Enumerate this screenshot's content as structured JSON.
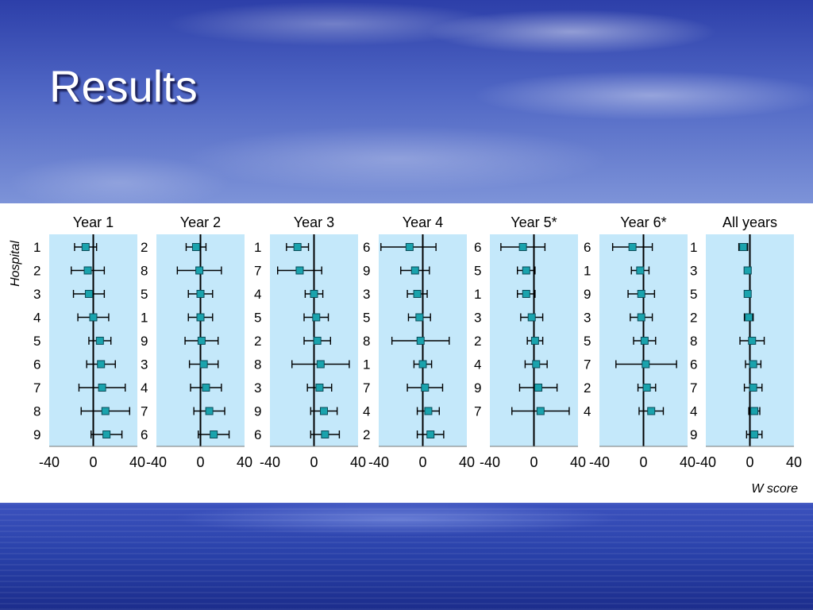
{
  "slide_title": "Results",
  "colors": {
    "panel_bg": "#c4e8fa",
    "marker": "#1aa3ad",
    "line": "#000000"
  },
  "chart_data": {
    "type": "scatter",
    "description_kind": "forest plot panels with error bars",
    "x_axis_label": "W score",
    "y_axis_label": "Hospital",
    "xlim": [
      -40,
      40
    ],
    "x_ticks": [
      "-40",
      "0",
      "40"
    ],
    "panels": [
      {
        "title": "Year 1",
        "hospitals": [
          "1",
          "2",
          "3",
          "4",
          "5",
          "6",
          "7",
          "8",
          "9"
        ],
        "points": [
          {
            "est": -7,
            "lo": -17,
            "hi": 3
          },
          {
            "est": -5,
            "lo": -20,
            "hi": 10
          },
          {
            "est": -4,
            "lo": -18,
            "hi": 10
          },
          {
            "est": 0,
            "lo": -14,
            "hi": 14
          },
          {
            "est": 6,
            "lo": -4,
            "hi": 16
          },
          {
            "est": 7,
            "lo": -6,
            "hi": 20
          },
          {
            "est": 8,
            "lo": -13,
            "hi": 29
          },
          {
            "est": 11,
            "lo": -11,
            "hi": 33
          },
          {
            "est": 12,
            "lo": -2,
            "hi": 26
          }
        ]
      },
      {
        "title": "Year 2",
        "hospitals": [
          "2",
          "8",
          "5",
          "1",
          "9",
          "3",
          "4",
          "7",
          "6"
        ],
        "points": [
          {
            "est": -4,
            "lo": -13,
            "hi": 5
          },
          {
            "est": -1,
            "lo": -21,
            "hi": 19
          },
          {
            "est": 0,
            "lo": -11,
            "hi": 11
          },
          {
            "est": 0,
            "lo": -11,
            "hi": 11
          },
          {
            "est": 1,
            "lo": -14,
            "hi": 16
          },
          {
            "est": 3,
            "lo": -10,
            "hi": 16
          },
          {
            "est": 5,
            "lo": -9,
            "hi": 19
          },
          {
            "est": 8,
            "lo": -6,
            "hi": 22
          },
          {
            "est": 12,
            "lo": -2,
            "hi": 26
          }
        ]
      },
      {
        "title": "Year 3",
        "hospitals": [
          "1",
          "7",
          "4",
          "5",
          "2",
          "8",
          "3",
          "9",
          "6"
        ],
        "points": [
          {
            "est": -15,
            "lo": -25,
            "hi": -5
          },
          {
            "est": -13,
            "lo": -33,
            "hi": 7
          },
          {
            "est": 0,
            "lo": -8,
            "hi": 8
          },
          {
            "est": 2,
            "lo": -9,
            "hi": 13
          },
          {
            "est": 3,
            "lo": -9,
            "hi": 15
          },
          {
            "est": 6,
            "lo": -20,
            "hi": 32
          },
          {
            "est": 5,
            "lo": -6,
            "hi": 16
          },
          {
            "est": 9,
            "lo": -3,
            "hi": 21
          },
          {
            "est": 10,
            "lo": -3,
            "hi": 23
          }
        ]
      },
      {
        "title": "Year 4",
        "hospitals": [
          "6",
          "9",
          "3",
          "5",
          "8",
          "1",
          "7",
          "4",
          "2"
        ],
        "points": [
          {
            "est": -12,
            "lo": -38,
            "hi": 12
          },
          {
            "est": -7,
            "lo": -20,
            "hi": 6
          },
          {
            "est": -5,
            "lo": -14,
            "hi": 4
          },
          {
            "est": -3,
            "lo": -13,
            "hi": 7
          },
          {
            "est": -2,
            "lo": -28,
            "hi": 24
          },
          {
            "est": 0,
            "lo": -8,
            "hi": 8
          },
          {
            "est": 2,
            "lo": -14,
            "hi": 18
          },
          {
            "est": 5,
            "lo": -5,
            "hi": 15
          },
          {
            "est": 7,
            "lo": -5,
            "hi": 19
          }
        ]
      },
      {
        "title": "Year 5*",
        "hospitals": [
          "6",
          "5",
          "1",
          "3",
          "2",
          "4",
          "9",
          "7"
        ],
        "points": [
          {
            "est": -10,
            "lo": -30,
            "hi": 10
          },
          {
            "est": -7,
            "lo": -15,
            "hi": 1
          },
          {
            "est": -7,
            "lo": -15,
            "hi": 1
          },
          {
            "est": -2,
            "lo": -12,
            "hi": 8
          },
          {
            "est": 1,
            "lo": -6,
            "hi": 8
          },
          {
            "est": 2,
            "lo": -8,
            "hi": 12
          },
          {
            "est": 4,
            "lo": -13,
            "hi": 21
          },
          {
            "est": 6,
            "lo": -20,
            "hi": 32
          }
        ]
      },
      {
        "title": "Year 6*",
        "hospitals": [
          "6",
          "1",
          "9",
          "3",
          "5",
          "7",
          "2",
          "4"
        ],
        "points": [
          {
            "est": -10,
            "lo": -28,
            "hi": 8
          },
          {
            "est": -3,
            "lo": -11,
            "hi": 5
          },
          {
            "est": -2,
            "lo": -14,
            "hi": 10
          },
          {
            "est": -2,
            "lo": -12,
            "hi": 8
          },
          {
            "est": 1,
            "lo": -9,
            "hi": 11
          },
          {
            "est": 2,
            "lo": -25,
            "hi": 30
          },
          {
            "est": 3,
            "lo": -5,
            "hi": 11
          },
          {
            "est": 7,
            "lo": -4,
            "hi": 18
          }
        ]
      },
      {
        "title": "All years",
        "hospitals": [
          "1",
          "3",
          "5",
          "2",
          "8",
          "6",
          "7",
          "4",
          "9"
        ],
        "points": [
          {
            "est": -6,
            "lo": -10,
            "hi": -2
          },
          {
            "est": -2,
            "lo": -5,
            "hi": 1
          },
          {
            "est": -2,
            "lo": -4,
            "hi": 0
          },
          {
            "est": -1,
            "lo": -5,
            "hi": 3
          },
          {
            "est": 2,
            "lo": -9,
            "hi": 13
          },
          {
            "est": 3,
            "lo": -4,
            "hi": 10
          },
          {
            "est": 3,
            "lo": -5,
            "hi": 11
          },
          {
            "est": 4,
            "lo": -1,
            "hi": 9
          },
          {
            "est": 4,
            "lo": -3,
            "hi": 11
          }
        ]
      }
    ]
  }
}
